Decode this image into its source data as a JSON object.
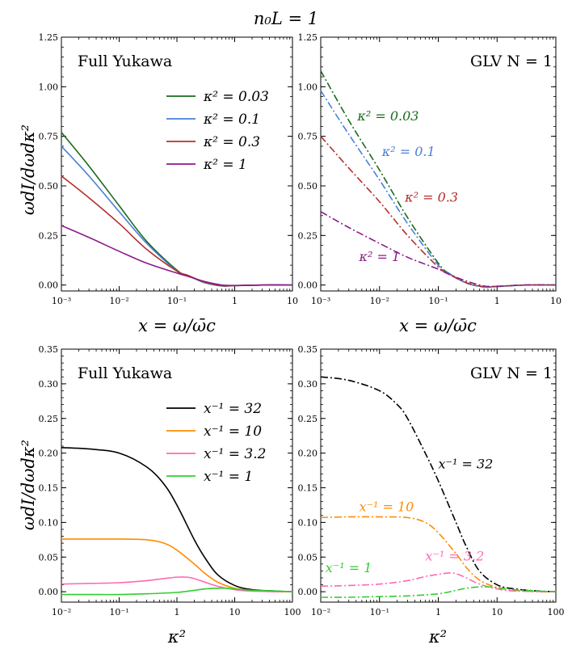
{
  "figure_title": "n₀L = 1",
  "chart_data": [
    {
      "id": "p1",
      "type": "line",
      "annotation": "Full Yukawa",
      "xlabel": "x = ω/ω̄c",
      "ylabel": "ωdI/dωdκ²",
      "xscale": "log",
      "xlim": [
        0.001,
        10
      ],
      "ylim": [
        -0.03,
        1.25
      ],
      "xticks": [
        {
          "v": 0.001,
          "t": "10⁻³"
        },
        {
          "v": 0.01,
          "t": "10⁻²"
        },
        {
          "v": 0.1,
          "t": "10⁻¹"
        },
        {
          "v": 1,
          "t": "1"
        },
        {
          "v": 10,
          "t": "10"
        }
      ],
      "yticks": [
        {
          "v": 0,
          "t": "0.00"
        },
        {
          "v": 0.25,
          "t": "0.25"
        },
        {
          "v": 0.5,
          "t": "0.50"
        },
        {
          "v": 0.75,
          "t": "0.75"
        },
        {
          "v": 1.0,
          "t": "1.00"
        },
        {
          "v": 1.25,
          "t": "1.25"
        }
      ],
      "legend_position": "top-right",
      "series": [
        {
          "name": "κ² = 0.03",
          "color": "#1a6b1a",
          "dash": "solid",
          "x": [
            0.001,
            0.003,
            0.01,
            0.03,
            0.1,
            0.15,
            0.3,
            0.6,
            1,
            3,
            10
          ],
          "y": [
            0.77,
            0.6,
            0.4,
            0.22,
            0.075,
            0.05,
            0.012,
            -0.005,
            -0.003,
            0.0,
            0.0
          ]
        },
        {
          "name": "κ² = 0.1",
          "color": "#4a7fd8",
          "dash": "solid",
          "x": [
            0.001,
            0.003,
            0.01,
            0.03,
            0.1,
            0.15,
            0.3,
            0.6,
            1,
            3,
            10
          ],
          "y": [
            0.7,
            0.55,
            0.37,
            0.21,
            0.07,
            0.05,
            0.013,
            -0.004,
            -0.003,
            0.0,
            0.0
          ]
        },
        {
          "name": "κ² = 0.3",
          "color": "#b52e2e",
          "dash": "solid",
          "x": [
            0.001,
            0.003,
            0.01,
            0.03,
            0.1,
            0.15,
            0.3,
            0.6,
            1,
            3,
            10
          ],
          "y": [
            0.55,
            0.44,
            0.31,
            0.18,
            0.07,
            0.05,
            0.015,
            -0.003,
            -0.003,
            0.0,
            0.0
          ]
        },
        {
          "name": "κ² = 1",
          "color": "#8b1a8b",
          "dash": "solid",
          "x": [
            0.001,
            0.003,
            0.01,
            0.03,
            0.1,
            0.15,
            0.3,
            0.6,
            1,
            3,
            10
          ],
          "y": [
            0.3,
            0.24,
            0.17,
            0.11,
            0.06,
            0.045,
            0.018,
            0.0,
            -0.002,
            0.0,
            0.0
          ]
        }
      ]
    },
    {
      "id": "p2",
      "type": "line",
      "annotation": "GLV N = 1",
      "xlabel": "x = ω/ω̄c",
      "ylabel": "",
      "xscale": "log",
      "xlim": [
        0.001,
        10
      ],
      "ylim": [
        -0.03,
        1.25
      ],
      "xticks": [
        {
          "v": 0.001,
          "t": "10⁻³"
        },
        {
          "v": 0.01,
          "t": "10⁻²"
        },
        {
          "v": 0.1,
          "t": "10⁻¹"
        },
        {
          "v": 1,
          "t": "1"
        },
        {
          "v": 10,
          "t": "10"
        }
      ],
      "yticks": [
        {
          "v": 0,
          "t": "0.00"
        },
        {
          "v": 0.25,
          "t": "0.25"
        },
        {
          "v": 0.5,
          "t": "0.50"
        },
        {
          "v": 0.75,
          "t": "0.75"
        },
        {
          "v": 1.0,
          "t": "1.00"
        },
        {
          "v": 1.25,
          "t": "1.25"
        }
      ],
      "labels": [
        {
          "text": "κ² = 0.03",
          "color": "#1a6b1a",
          "x": 0.0042,
          "y": 0.83
        },
        {
          "text": "κ² = 0.1",
          "color": "#4a7fd8",
          "x": 0.011,
          "y": 0.65
        },
        {
          "text": "κ² = 0.3",
          "color": "#b52e2e",
          "x": 0.027,
          "y": 0.42
        },
        {
          "text": "κ² = 1",
          "color": "#8b1a8b",
          "x": 0.0045,
          "y": 0.12
        }
      ],
      "series": [
        {
          "name": "κ² = 0.03",
          "color": "#1a6b1a",
          "dash": "dashdot",
          "x": [
            0.001,
            0.003,
            0.01,
            0.03,
            0.1,
            0.15,
            0.3,
            0.6,
            1,
            3,
            10
          ],
          "y": [
            1.08,
            0.83,
            0.58,
            0.34,
            0.11,
            0.06,
            0.01,
            -0.01,
            -0.008,
            0.0,
            0.0
          ]
        },
        {
          "name": "κ² = 0.1",
          "color": "#4a7fd8",
          "dash": "dashdot",
          "x": [
            0.001,
            0.003,
            0.01,
            0.03,
            0.1,
            0.15,
            0.3,
            0.6,
            1,
            3,
            10
          ],
          "y": [
            0.98,
            0.76,
            0.53,
            0.31,
            0.1,
            0.06,
            0.01,
            -0.01,
            -0.008,
            0.0,
            0.0
          ]
        },
        {
          "name": "κ² = 0.3",
          "color": "#b52e2e",
          "dash": "dashdot",
          "x": [
            0.001,
            0.003,
            0.01,
            0.03,
            0.1,
            0.15,
            0.3,
            0.6,
            1,
            3,
            10
          ],
          "y": [
            0.75,
            0.59,
            0.42,
            0.25,
            0.09,
            0.055,
            0.012,
            -0.008,
            -0.007,
            0.0,
            0.0
          ]
        },
        {
          "name": "κ² = 1",
          "color": "#8b1a8b",
          "dash": "dashdot",
          "x": [
            0.001,
            0.003,
            0.01,
            0.03,
            0.1,
            0.15,
            0.3,
            0.6,
            1,
            3,
            10
          ],
          "y": [
            0.37,
            0.29,
            0.21,
            0.14,
            0.08,
            0.055,
            0.02,
            -0.005,
            -0.006,
            0.0,
            0.0
          ]
        }
      ]
    },
    {
      "id": "p3",
      "type": "line",
      "annotation": "Full Yukawa",
      "xlabel": "κ²",
      "ylabel": "ωdI/dωdκ²",
      "xscale": "log",
      "xlim": [
        0.01,
        100
      ],
      "ylim": [
        -0.015,
        0.35
      ],
      "xticks": [
        {
          "v": 0.01,
          "t": "10⁻²"
        },
        {
          "v": 0.1,
          "t": "10⁻¹"
        },
        {
          "v": 1,
          "t": "1"
        },
        {
          "v": 10,
          "t": "10"
        },
        {
          "v": 100,
          "t": "100"
        }
      ],
      "yticks": [
        {
          "v": 0,
          "t": "0.00"
        },
        {
          "v": 0.05,
          "t": "0.05"
        },
        {
          "v": 0.1,
          "t": "0.10"
        },
        {
          "v": 0.15,
          "t": "0.15"
        },
        {
          "v": 0.2,
          "t": "0.20"
        },
        {
          "v": 0.25,
          "t": "0.25"
        },
        {
          "v": 0.3,
          "t": "0.30"
        },
        {
          "v": 0.35,
          "t": "0.35"
        }
      ],
      "legend_position": "top-right",
      "series": [
        {
          "name": "x⁻¹ = 32",
          "color": "#000000",
          "dash": "solid",
          "x": [
            0.01,
            0.03,
            0.1,
            0.3,
            0.6,
            1,
            2,
            3,
            5,
            10,
            20,
            50,
            100
          ],
          "y": [
            0.208,
            0.206,
            0.2,
            0.18,
            0.155,
            0.125,
            0.075,
            0.05,
            0.025,
            0.009,
            0.003,
            0.001,
            0.0
          ]
        },
        {
          "name": "x⁻¹ = 10",
          "color": "#ff8c00",
          "dash": "solid",
          "x": [
            0.01,
            0.03,
            0.1,
            0.3,
            0.6,
            1,
            2,
            3,
            5,
            10,
            20,
            50,
            100
          ],
          "y": [
            0.076,
            0.076,
            0.076,
            0.075,
            0.07,
            0.06,
            0.04,
            0.027,
            0.014,
            0.005,
            0.002,
            0.0,
            0.0
          ]
        },
        {
          "name": "x⁻¹ = 3.2",
          "color": "#ff69b4",
          "dash": "solid",
          "x": [
            0.01,
            0.03,
            0.1,
            0.3,
            0.6,
            1,
            1.5,
            2,
            3,
            5,
            10,
            20,
            100
          ],
          "y": [
            0.011,
            0.012,
            0.013,
            0.016,
            0.019,
            0.021,
            0.021,
            0.019,
            0.014,
            0.008,
            0.003,
            0.001,
            0.0
          ]
        },
        {
          "name": "x⁻¹ = 1",
          "color": "#32cd32",
          "dash": "solid",
          "x": [
            0.01,
            0.03,
            0.1,
            0.3,
            1,
            2,
            3,
            5,
            7,
            10,
            20,
            50,
            100
          ],
          "y": [
            -0.004,
            -0.004,
            -0.004,
            -0.003,
            -0.001,
            0.002,
            0.004,
            0.005,
            0.005,
            0.004,
            0.002,
            0.001,
            0.0
          ]
        }
      ]
    },
    {
      "id": "p4",
      "type": "line",
      "annotation": "GLV N = 1",
      "xlabel": "κ²",
      "ylabel": "",
      "xscale": "log",
      "xlim": [
        0.01,
        100
      ],
      "ylim": [
        -0.015,
        0.35
      ],
      "xticks": [
        {
          "v": 0.01,
          "t": "10⁻²"
        },
        {
          "v": 0.1,
          "t": "10⁻¹"
        },
        {
          "v": 1,
          "t": "1"
        },
        {
          "v": 10,
          "t": "10"
        },
        {
          "v": 100,
          "t": "100"
        }
      ],
      "yticks": [
        {
          "v": 0,
          "t": "0.00"
        },
        {
          "v": 0.05,
          "t": "0.05"
        },
        {
          "v": 0.1,
          "t": "0.10"
        },
        {
          "v": 0.15,
          "t": "0.15"
        },
        {
          "v": 0.2,
          "t": "0.20"
        },
        {
          "v": 0.25,
          "t": "0.25"
        },
        {
          "v": 0.3,
          "t": "0.30"
        },
        {
          "v": 0.35,
          "t": "0.35"
        }
      ],
      "labels": [
        {
          "text": "x⁻¹ = 32",
          "color": "#000000",
          "x": 1.0,
          "y": 0.178
        },
        {
          "text": "x⁻¹ = 10",
          "color": "#ff8c00",
          "x": 0.045,
          "y": 0.116
        },
        {
          "text": "x⁻¹ = 3.2",
          "color": "#ff69b4",
          "x": 0.6,
          "y": 0.045
        },
        {
          "text": "x⁻¹ = 1",
          "color": "#32cd32",
          "x": 0.012,
          "y": 0.028
        }
      ],
      "series": [
        {
          "name": "x⁻¹ = 32",
          "color": "#000000",
          "dash": "dashdot",
          "x": [
            0.01,
            0.03,
            0.1,
            0.2,
            0.3,
            0.6,
            1,
            2,
            3,
            5,
            10,
            20,
            50,
            100
          ],
          "y": [
            0.31,
            0.305,
            0.29,
            0.27,
            0.25,
            0.2,
            0.16,
            0.1,
            0.065,
            0.03,
            0.01,
            0.004,
            0.001,
            0.0
          ]
        },
        {
          "name": "x⁻¹ = 10",
          "color": "#ff8c00",
          "dash": "dashdot",
          "x": [
            0.01,
            0.03,
            0.1,
            0.3,
            0.6,
            1,
            2,
            3,
            5,
            10,
            20,
            50,
            100
          ],
          "y": [
            0.107,
            0.108,
            0.108,
            0.107,
            0.1,
            0.085,
            0.055,
            0.035,
            0.017,
            0.006,
            0.002,
            0.0,
            0.0
          ]
        },
        {
          "name": "x⁻¹ = 3.2",
          "color": "#ff69b4",
          "dash": "dashdot",
          "x": [
            0.01,
            0.03,
            0.1,
            0.3,
            0.6,
            1,
            1.5,
            2,
            3,
            5,
            10,
            20,
            100
          ],
          "y": [
            0.008,
            0.009,
            0.011,
            0.016,
            0.022,
            0.025,
            0.027,
            0.026,
            0.02,
            0.011,
            0.004,
            0.001,
            0.0
          ]
        },
        {
          "name": "x⁻¹ = 1",
          "color": "#32cd32",
          "dash": "dashdot",
          "x": [
            0.01,
            0.03,
            0.1,
            0.3,
            1,
            2,
            3,
            5,
            7,
            10,
            20,
            50,
            100
          ],
          "y": [
            -0.008,
            -0.008,
            -0.007,
            -0.006,
            -0.003,
            0.002,
            0.005,
            0.007,
            0.007,
            0.006,
            0.003,
            0.001,
            0.0
          ]
        }
      ]
    }
  ]
}
